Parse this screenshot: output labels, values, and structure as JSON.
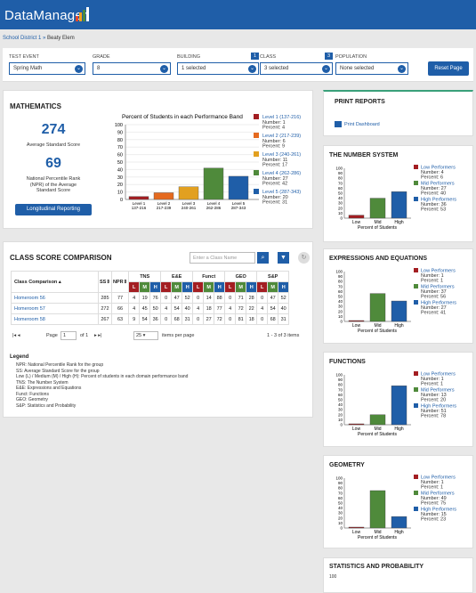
{
  "app": {
    "logo": "DataManager",
    "logo_colors": [
      "#e8462b",
      "#f7a21b",
      "#4c8a3c",
      "#1f5ea8"
    ]
  },
  "breadcrumb": {
    "district": "School District 1",
    "sep": "»",
    "school": "Beaty Elem"
  },
  "filters": [
    {
      "label": "TEST EVENT",
      "value": "Spring Math",
      "badge": ""
    },
    {
      "label": "GRADE",
      "value": "8",
      "badge": ""
    },
    {
      "label": "BUILDING",
      "value": "1 selected",
      "badge": "1"
    },
    {
      "label": "CLASS",
      "value": "3 selected",
      "badge": "3"
    },
    {
      "label": "POPULATION",
      "value": "None selected",
      "badge": ""
    }
  ],
  "reset_label": "Reset Page",
  "math": {
    "title": "MATHEMATICS",
    "avg_score": "274",
    "avg_label": "Average Standard Score",
    "npr": "69",
    "npr_label": "National Percentile Rank (NPR) of the Average Standard Score",
    "long_btn": "Longitudinal Reporting"
  },
  "colors": {
    "level1": "#a31e22",
    "level2": "#e56a1f",
    "level3": "#e2a020",
    "level4": "#4f8a3b",
    "level5": "#1f5ea8",
    "low": "#a31e22",
    "mid": "#4f8a3b",
    "high": "#1f5ea8",
    "brand": "#1f5ea8"
  },
  "chart_data": [
    {
      "type": "bar",
      "title": "Percent of Students in each Performance Band",
      "ylim": [
        0,
        100
      ],
      "yticks": [
        0,
        10,
        20,
        30,
        40,
        50,
        60,
        70,
        80,
        90,
        100
      ],
      "categories": [
        "Level 1 137-216",
        "Level 2 217-239",
        "Level 3 240-261",
        "Level 4 262-286",
        "Level 5 287-343"
      ],
      "tick_lines": [
        [
          "Level 1",
          "137-216"
        ],
        [
          "Level 2",
          "217-239"
        ],
        [
          "Level 3",
          "240-261"
        ],
        [
          "Level 4",
          "262-286"
        ],
        [
          "Level 5",
          "287-343"
        ]
      ],
      "values": [
        4,
        9,
        17,
        42,
        31
      ],
      "legend": [
        {
          "name": "Level 1 (137-216)",
          "lines": [
            "Number: 1",
            "Percent: 4"
          ]
        },
        {
          "name": "Level 2 (217-239)",
          "lines": [
            "Number: 6",
            "Percent: 9"
          ]
        },
        {
          "name": "Level 3 (240-261)",
          "lines": [
            "Number: 11",
            "Percent: 17"
          ]
        },
        {
          "name": "Level 4 (262-286)",
          "lines": [
            "Number: 27",
            "Percent: 42"
          ]
        },
        {
          "name": "Level 5 (287-343)",
          "lines": [
            "Number: 20",
            "Percent: 31"
          ]
        }
      ]
    },
    {
      "type": "bar",
      "title": "THE NUMBER SYSTEM",
      "xlabel": "Percent of Students",
      "ylim": [
        0,
        100
      ],
      "categories": [
        "Low",
        "Mid",
        "High"
      ],
      "values": [
        6,
        40,
        53
      ],
      "legend": [
        {
          "name": "Low Performers",
          "lines": [
            "Number: 4",
            "Percent: 6"
          ]
        },
        {
          "name": "Mid Performers",
          "lines": [
            "Number: 27",
            "Percent: 40"
          ]
        },
        {
          "name": "High Performers",
          "lines": [
            "Number: 36",
            "Percent: 53"
          ]
        }
      ]
    },
    {
      "type": "bar",
      "title": "EXPRESSIONS AND EQUATIONS",
      "xlabel": "Percent of Students",
      "ylim": [
        0,
        100
      ],
      "categories": [
        "Low",
        "Mid",
        "High"
      ],
      "values": [
        1,
        56,
        41
      ],
      "legend": [
        {
          "name": "Low Performers",
          "lines": [
            "Number: 1",
            "Percent: 1"
          ]
        },
        {
          "name": "Mid Performers",
          "lines": [
            "Number: 37",
            "Percent: 56"
          ]
        },
        {
          "name": "High Performers",
          "lines": [
            "Number: 27",
            "Percent: 41"
          ]
        }
      ]
    },
    {
      "type": "bar",
      "title": "FUNCTIONS",
      "xlabel": "Percent of Students",
      "ylim": [
        0,
        100
      ],
      "categories": [
        "Low",
        "Mid",
        "High"
      ],
      "values": [
        1,
        20,
        78
      ],
      "legend": [
        {
          "name": "Low Performers",
          "lines": [
            "Number: 1",
            "Percent: 1"
          ]
        },
        {
          "name": "Mid Performers",
          "lines": [
            "Number: 13",
            "Percent: 20"
          ]
        },
        {
          "name": "High Performers",
          "lines": [
            "Number: 51",
            "Percent: 78"
          ]
        }
      ]
    },
    {
      "type": "bar",
      "title": "GEOMETRY",
      "xlabel": "Percent of Students",
      "ylim": [
        0,
        100
      ],
      "categories": [
        "Low",
        "Mid",
        "High"
      ],
      "values": [
        1,
        75,
        23
      ],
      "legend": [
        {
          "name": "Low Performers",
          "lines": [
            "Number: 1",
            "Percent: 1"
          ]
        },
        {
          "name": "Mid Performers",
          "lines": [
            "Number: 49",
            "Percent: 75"
          ]
        },
        {
          "name": "High Performers",
          "lines": [
            "Number: 15",
            "Percent: 23"
          ]
        }
      ]
    }
  ],
  "yticks_small": [
    0,
    10,
    20,
    30,
    40,
    50,
    60,
    70,
    80,
    90,
    100
  ],
  "print": {
    "title": "PRINT REPORTS",
    "link": "Print Dashboard"
  },
  "stats_title": "STATISTICS AND PROBABILITY",
  "stats_first_tick": "100",
  "class": {
    "title": "CLASS SCORE COMPARISON",
    "search_placeholder": "Enter a Class Name",
    "headers": {
      "name": "Class Comparison",
      "ss": "SS",
      "npr": "NPR",
      "groups": [
        "TNS",
        "E&E",
        "Funct",
        "GEO",
        "S&P"
      ],
      "sub": [
        "L",
        "M",
        "H"
      ]
    },
    "rows": [
      {
        "name": "Homeroom 56",
        "ss": "285",
        "npr": "77",
        "vals": [
          "4",
          "19",
          "76",
          "0",
          "47",
          "52",
          "0",
          "14",
          "88",
          "0",
          "71",
          "28",
          "0",
          "47",
          "52"
        ]
      },
      {
        "name": "Homeroom 57",
        "ss": "272",
        "npr": "66",
        "vals": [
          "4",
          "45",
          "50",
          "4",
          "54",
          "40",
          "4",
          "18",
          "77",
          "4",
          "72",
          "22",
          "4",
          "54",
          "40"
        ]
      },
      {
        "name": "Homeroom 58",
        "ss": "267",
        "npr": "63",
        "vals": [
          "9",
          "54",
          "36",
          "0",
          "68",
          "31",
          "0",
          "27",
          "72",
          "0",
          "81",
          "18",
          "0",
          "68",
          "31"
        ]
      }
    ],
    "page_label": "Page",
    "page": "1",
    "page_of": "of 1",
    "per_page": "25",
    "per_page_label": "items per page",
    "range": "1 - 3 of 3 items",
    "legend_title": "Legend",
    "legend": [
      "NPR: National Percentile Rank for the group",
      "SS: Average Standard Score for the group",
      "Low (L) / Medium (M) / High (H): Percent of students in each domain performance band",
      "TNS: The Number System",
      "E&E: Expressions and Equations",
      "Funct: Functions",
      "GEO: Geometry",
      "S&P: Statistics and Probability"
    ]
  }
}
